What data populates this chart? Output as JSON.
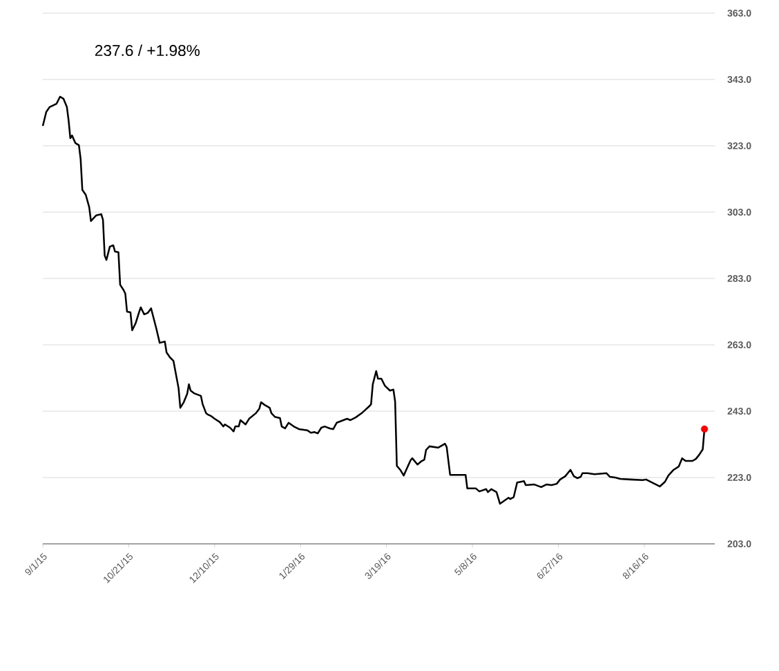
{
  "chart_data": {
    "type": "line",
    "annotations": [
      "237.6  /  +1.98%"
    ],
    "xlim": [
      "2015-09-01",
      "2016-09-26"
    ],
    "xticks": [
      {
        "value": "2015-09-01",
        "label": "9/1/15"
      },
      {
        "value": "2015-10-21",
        "label": "10/21/15"
      },
      {
        "value": "2015-12-10",
        "label": "12/10/15"
      },
      {
        "value": "2016-01-29",
        "label": "1/29/16"
      },
      {
        "value": "2016-03-19",
        "label": "3/19/16"
      },
      {
        "value": "2016-05-08",
        "label": "5/8/16"
      },
      {
        "value": "2016-06-27",
        "label": "6/27/16"
      },
      {
        "value": "2016-08-16",
        "label": "8/16/16"
      }
    ],
    "ylim": [
      203,
      363
    ],
    "yticks": [
      {
        "value": 203,
        "label": "203.0"
      },
      {
        "value": 223,
        "label": "223.0"
      },
      {
        "value": 243,
        "label": "243.0"
      },
      {
        "value": 263,
        "label": "263.0"
      },
      {
        "value": 283,
        "label": "283.0"
      },
      {
        "value": 303,
        "label": "303.0"
      },
      {
        "value": 323,
        "label": "323.0"
      },
      {
        "value": 343,
        "label": "343.0"
      },
      {
        "value": 363,
        "label": "363.0"
      }
    ],
    "grid": "y",
    "series": [
      {
        "color": "#000000",
        "marker": "none",
        "line_style": "solid",
        "x": [
          "2015-09-01",
          "2015-09-03",
          "2015-09-05",
          "2015-09-09",
          "2015-09-11",
          "2015-09-13",
          "2015-09-15",
          "2015-09-16",
          "2015-09-17",
          "2015-09-18",
          "2015-09-20",
          "2015-09-22",
          "2015-09-23",
          "2015-09-24",
          "2015-09-26",
          "2015-09-28",
          "2015-09-29",
          "2015-09-30",
          "2015-10-02",
          "2015-10-05",
          "2015-10-06",
          "2015-10-07",
          "2015-10-08",
          "2015-10-10",
          "2015-10-12",
          "2015-10-13",
          "2015-10-15",
          "2015-10-16",
          "2015-10-18",
          "2015-10-19",
          "2015-10-20",
          "2015-10-22",
          "2015-10-23",
          "2015-10-25",
          "2015-10-27",
          "2015-10-28",
          "2015-10-30",
          "2015-11-01",
          "2015-11-03",
          "2015-11-06",
          "2015-11-08",
          "2015-11-11",
          "2015-11-12",
          "2015-11-14",
          "2015-11-16",
          "2015-11-19",
          "2015-11-20",
          "2015-11-22",
          "2015-11-24",
          "2015-11-25",
          "2015-11-26",
          "2015-11-28",
          "2015-12-02",
          "2015-12-03",
          "2015-12-05",
          "2015-12-06",
          "2015-12-08",
          "2015-12-10",
          "2015-12-13",
          "2015-12-15",
          "2015-12-16",
          "2015-12-19",
          "2015-12-21",
          "2015-12-22",
          "2015-12-24",
          "2015-12-25",
          "2015-12-28",
          "2015-12-30",
          "2016-01-03",
          "2016-01-05",
          "2016-01-06",
          "2016-01-08",
          "2016-01-11",
          "2016-01-12",
          "2016-01-14",
          "2016-01-17",
          "2016-01-18",
          "2016-01-20",
          "2016-01-22",
          "2016-01-25",
          "2016-01-28",
          "2016-02-02",
          "2016-02-04",
          "2016-02-06",
          "2016-02-08",
          "2016-02-10",
          "2016-02-12",
          "2016-02-15",
          "2016-02-17",
          "2016-02-19",
          "2016-02-21",
          "2016-02-25",
          "2016-02-27",
          "2016-03-01",
          "2016-03-05",
          "2016-03-09",
          "2016-03-10",
          "2016-03-11",
          "2016-03-13",
          "2016-03-14",
          "2016-03-16",
          "2016-03-18",
          "2016-03-21",
          "2016-03-23",
          "2016-03-24",
          "2016-03-25",
          "2016-03-27",
          "2016-03-29",
          "2016-03-31",
          "2016-04-02",
          "2016-04-03",
          "2016-04-06",
          "2016-04-08",
          "2016-04-10",
          "2016-04-11",
          "2016-04-13",
          "2016-04-18",
          "2016-04-20",
          "2016-04-22",
          "2016-04-23",
          "2016-04-25",
          "2016-05-04",
          "2016-05-05",
          "2016-05-10",
          "2016-05-12",
          "2016-05-16",
          "2016-05-17",
          "2016-05-19",
          "2016-05-22",
          "2016-05-24",
          "2016-05-29",
          "2016-05-30",
          "2016-06-01",
          "2016-06-03",
          "2016-06-07",
          "2016-06-08",
          "2016-06-13",
          "2016-06-17",
          "2016-06-20",
          "2016-06-23",
          "2016-06-26",
          "2016-06-28",
          "2016-07-01",
          "2016-07-04",
          "2016-07-06",
          "2016-07-08",
          "2016-07-10",
          "2016-07-11",
          "2016-07-14",
          "2016-07-18",
          "2016-07-25",
          "2016-07-27",
          "2016-07-30",
          "2016-08-02",
          "2016-08-08",
          "2016-08-15",
          "2016-08-17",
          "2016-08-22",
          "2016-08-25",
          "2016-08-28",
          "2016-08-30",
          "2016-09-02",
          "2016-09-05",
          "2016-09-07",
          "2016-09-09",
          "2016-09-13",
          "2016-09-15",
          "2016-09-17",
          "2016-09-19",
          "2016-09-20"
        ],
        "values": [
          329.0,
          333.2,
          334.7,
          335.7,
          337.8,
          337.2,
          334.7,
          330.7,
          325.3,
          326.1,
          323.8,
          323.2,
          319.0,
          309.7,
          308.2,
          304.5,
          300.3,
          300.9,
          302.0,
          302.4,
          300.7,
          289.9,
          288.6,
          292.6,
          293.0,
          291.1,
          290.9,
          281.1,
          279.5,
          278.4,
          273.0,
          272.8,
          267.4,
          269.5,
          272.8,
          274.3,
          272.2,
          272.6,
          274.0,
          268.0,
          263.6,
          264.0,
          260.7,
          259.2,
          258.2,
          249.9,
          244.0,
          245.7,
          248.2,
          251.1,
          249.2,
          248.4,
          247.6,
          245.1,
          242.4,
          242.0,
          241.5,
          240.7,
          239.7,
          238.4,
          239.0,
          238.0,
          236.9,
          238.4,
          238.4,
          240.3,
          239.0,
          240.7,
          242.4,
          243.8,
          245.7,
          244.9,
          244.0,
          242.4,
          241.3,
          240.9,
          238.4,
          237.8,
          239.5,
          238.4,
          237.6,
          237.2,
          236.5,
          236.7,
          236.3,
          238.0,
          238.4,
          237.8,
          237.6,
          239.5,
          239.9,
          240.7,
          240.3,
          241.1,
          242.6,
          244.5,
          245.1,
          251.1,
          255.1,
          252.8,
          252.8,
          250.7,
          249.2,
          249.5,
          245.9,
          226.5,
          225.3,
          223.6,
          225.9,
          228.2,
          228.8,
          226.9,
          227.8,
          228.4,
          231.3,
          232.4,
          232.0,
          232.6,
          233.2,
          232.2,
          223.8,
          223.8,
          219.7,
          219.7,
          218.8,
          219.5,
          218.6,
          219.5,
          218.6,
          215.1,
          216.9,
          216.5,
          217.1,
          221.5,
          221.9,
          220.7,
          220.9,
          220.1,
          220.9,
          220.7,
          221.1,
          222.4,
          223.4,
          225.3,
          223.4,
          222.8,
          223.2,
          224.3,
          224.3,
          224.0,
          224.3,
          223.2,
          223.0,
          222.6,
          222.4,
          222.2,
          222.4,
          221.1,
          220.3,
          221.7,
          223.6,
          225.3,
          226.3,
          228.8,
          228.0,
          228.0,
          228.6,
          229.9,
          231.5,
          237.6
        ]
      },
      {
        "type": "scatter",
        "color": "#ff0000",
        "marker": "circle",
        "x": [
          "2016-09-20"
        ],
        "values": [
          237.6
        ]
      }
    ]
  }
}
